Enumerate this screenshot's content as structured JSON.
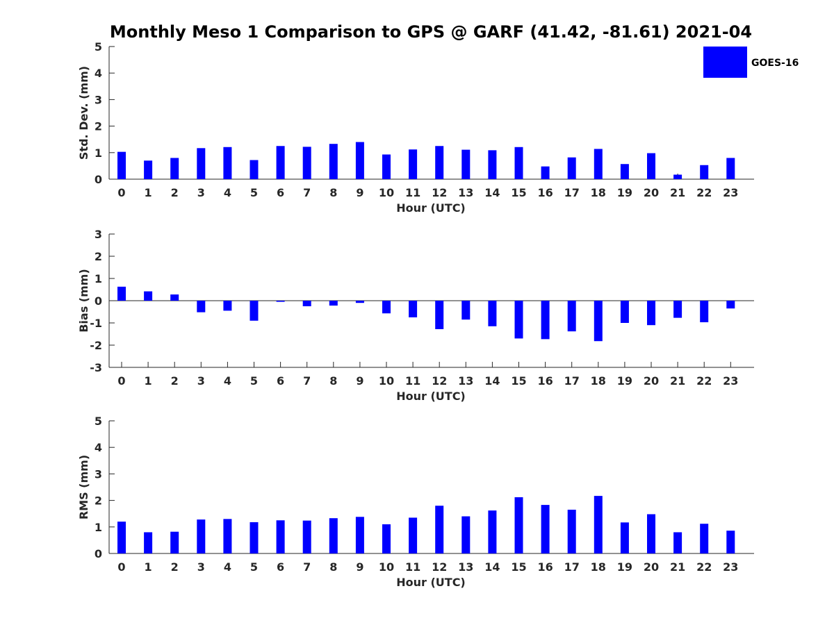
{
  "chart_data": {
    "title": "Monthly Meso 1 Comparison to GPS @ GARF (41.42, -81.61) 2021-04",
    "bar_color": "#0000ff",
    "legend": {
      "label": "GOES-16",
      "placement": "top-right"
    },
    "grid": false,
    "panels": [
      {
        "type": "bar",
        "ylabel": "Std. Dev. (mm)",
        "xlabel": "Hour (UTC)",
        "ylim": [
          0,
          5
        ],
        "yticks": [
          0,
          1,
          2,
          3,
          4,
          5
        ],
        "categories": [
          0,
          1,
          2,
          3,
          4,
          5,
          6,
          7,
          8,
          9,
          10,
          11,
          12,
          13,
          14,
          15,
          16,
          17,
          18,
          19,
          20,
          21,
          22,
          23
        ],
        "values": [
          1.03,
          0.7,
          0.8,
          1.17,
          1.21,
          0.72,
          1.25,
          1.22,
          1.33,
          1.4,
          0.93,
          1.12,
          1.25,
          1.11,
          1.09,
          1.21,
          0.48,
          0.82,
          1.14,
          0.57,
          0.98,
          0.17,
          0.53,
          0.8
        ]
      },
      {
        "type": "bar",
        "ylabel": "Bias (mm)",
        "xlabel": "Hour (UTC)",
        "ylim": [
          -3,
          3
        ],
        "yticks": [
          -3,
          -2,
          -1,
          0,
          1,
          2,
          3
        ],
        "categories": [
          0,
          1,
          2,
          3,
          4,
          5,
          6,
          7,
          8,
          9,
          10,
          11,
          12,
          13,
          14,
          15,
          16,
          17,
          18,
          19,
          20,
          21,
          22,
          23
        ],
        "values": [
          0.63,
          0.42,
          0.28,
          -0.52,
          -0.45,
          -0.9,
          -0.05,
          -0.25,
          -0.22,
          -0.1,
          -0.57,
          -0.75,
          -1.28,
          -0.85,
          -1.15,
          -1.7,
          -1.73,
          -1.38,
          -1.82,
          -1.0,
          -1.1,
          -0.77,
          -0.97,
          -0.35
        ]
      },
      {
        "type": "bar",
        "ylabel": "RMS (mm)",
        "xlabel": "Hour (UTC)",
        "ylim": [
          0,
          5
        ],
        "yticks": [
          0,
          1,
          2,
          3,
          4,
          5
        ],
        "categories": [
          0,
          1,
          2,
          3,
          4,
          5,
          6,
          7,
          8,
          9,
          10,
          11,
          12,
          13,
          14,
          15,
          16,
          17,
          18,
          19,
          20,
          21,
          22,
          23
        ],
        "values": [
          1.2,
          0.8,
          0.82,
          1.28,
          1.3,
          1.18,
          1.25,
          1.24,
          1.33,
          1.38,
          1.1,
          1.35,
          1.8,
          1.4,
          1.62,
          2.12,
          1.83,
          1.65,
          2.17,
          1.17,
          1.48,
          0.8,
          1.12,
          0.86
        ]
      }
    ]
  }
}
